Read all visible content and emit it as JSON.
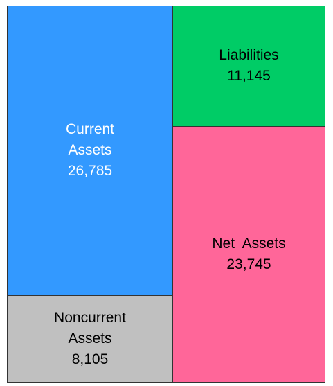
{
  "chart_data": {
    "type": "balance-sheet",
    "columns": [
      {
        "categories": [
          "Current Assets",
          "Noncurrent Assets"
        ],
        "values": [
          26785,
          8105
        ],
        "value_labels": [
          "26,785",
          "8,105"
        ],
        "colors": [
          "#3399ff",
          "#c0c0c0"
        ]
      },
      {
        "categories": [
          "Liabilities",
          "Net  Assets"
        ],
        "values": [
          11145,
          23745
        ],
        "value_labels": [
          "11,145",
          "23,745"
        ],
        "colors": [
          "#00cc66",
          "#ff6699"
        ]
      }
    ]
  }
}
